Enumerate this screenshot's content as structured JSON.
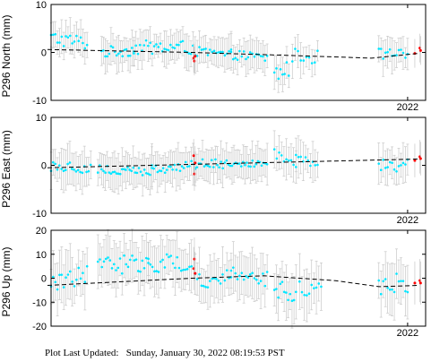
{
  "footer": {
    "label": "Plot Last Updated:",
    "value": "Sunday, January 30, 2022 08:19:53 PST"
  },
  "colors": {
    "points": "#00e5ff",
    "recent_points": "#ff0000",
    "error_bars": "#c8c8c8",
    "trend": "#000000",
    "frame": "#000000"
  },
  "chart_data": [
    {
      "type": "scatter",
      "ylabel": "P296 North (mm)",
      "ylim": [
        -10,
        10
      ],
      "yticks": [
        -10,
        0,
        10
      ],
      "x_tick_label": "2022",
      "x_tick_value": 2022.0,
      "xlim": [
        2017.05,
        2022.25
      ],
      "grid": false,
      "points_color": "cyan",
      "recent_points_color": "red",
      "error_bar_color": "gray",
      "error_bar_halfwidth_mm": 3,
      "trend": {
        "style": "dashed",
        "x": [
          2017.0,
          2019.0,
          2020.5,
          2021.5,
          2022.15
        ],
        "y": [
          0.6,
          0.0,
          -0.7,
          -1.2,
          -0.2
        ]
      },
      "segments": [
        {
          "x_start": 2017.05,
          "x_end": 2017.55,
          "y_start": 3.0,
          "y_end": 2.0,
          "amplitude": 1.5,
          "points": 18
        },
        {
          "x_start": 2017.75,
          "x_end": 2018.2,
          "y_start": 0.0,
          "y_end": 0.5,
          "amplitude": 1.2,
          "points": 18
        },
        {
          "x_start": 2018.2,
          "x_end": 2019.02,
          "y_start": 1.0,
          "y_end": 1.0,
          "amplitude": 1.5,
          "points": 30
        },
        {
          "x_start": 2019.05,
          "x_end": 2019.55,
          "y_start": 0.2,
          "y_end": -0.6,
          "amplitude": 1.0,
          "points": 18
        },
        {
          "x_start": 2019.55,
          "x_end": 2020.05,
          "y_start": -0.4,
          "y_end": -1.2,
          "amplitude": 1.0,
          "points": 18
        },
        {
          "x_start": 2020.15,
          "x_end": 2020.35,
          "y_start": -4.5,
          "y_end": -3.5,
          "amplitude": 1.8,
          "points": 8
        },
        {
          "x_start": 2020.4,
          "x_end": 2020.75,
          "y_start": -0.6,
          "y_end": -1.0,
          "amplitude": 1.5,
          "points": 10
        },
        {
          "x_start": 2021.6,
          "x_end": 2022.0,
          "y_start": -0.3,
          "y_end": -0.6,
          "amplitude": 1.2,
          "points": 14
        }
      ],
      "recent_points": [
        {
          "x": 2019.03,
          "y": -1.2
        },
        {
          "x": 2019.04,
          "y": -1.8
        },
        {
          "x": 2019.05,
          "y": -0.8
        },
        {
          "x": 2022.1,
          "y": -0.2
        },
        {
          "x": 2022.17,
          "y": 0.9
        },
        {
          "x": 2022.18,
          "y": 0.4
        }
      ]
    },
    {
      "type": "scatter",
      "ylabel": "P296 East (mm)",
      "ylim": [
        -10,
        10
      ],
      "yticks": [
        -10,
        0,
        10
      ],
      "x_tick_label": "2022",
      "x_tick_value": 2022.0,
      "xlim": [
        2017.05,
        2022.25
      ],
      "grid": false,
      "points_color": "cyan",
      "recent_points_color": "red",
      "error_bar_color": "gray",
      "error_bar_halfwidth_mm": 3.5,
      "trend": {
        "style": "dashed",
        "x": [
          2017.0,
          2022.15
        ],
        "y": [
          -0.5,
          1.3
        ]
      },
      "segments": [
        {
          "x_start": 2017.05,
          "x_end": 2017.6,
          "y_start": 0.0,
          "y_end": -0.5,
          "amplitude": 1.2,
          "points": 20
        },
        {
          "x_start": 2017.7,
          "x_end": 2018.45,
          "y_start": -1.0,
          "y_end": -1.5,
          "amplitude": 1.2,
          "points": 30
        },
        {
          "x_start": 2018.45,
          "x_end": 2019.05,
          "y_start": -0.8,
          "y_end": 0.0,
          "amplitude": 1.0,
          "points": 24
        },
        {
          "x_start": 2019.05,
          "x_end": 2020.05,
          "y_start": 0.3,
          "y_end": 0.5,
          "amplitude": 1.0,
          "points": 40
        },
        {
          "x_start": 2020.15,
          "x_end": 2020.45,
          "y_start": 2.0,
          "y_end": 1.5,
          "amplitude": 1.5,
          "points": 10
        },
        {
          "x_start": 2020.45,
          "x_end": 2020.75,
          "y_start": 0.5,
          "y_end": 1.0,
          "amplitude": 1.2,
          "points": 10
        },
        {
          "x_start": 2021.6,
          "x_end": 2022.0,
          "y_start": -0.5,
          "y_end": 0.5,
          "amplitude": 1.5,
          "points": 14
        }
      ],
      "recent_points": [
        {
          "x": 2019.03,
          "y": 2.0
        },
        {
          "x": 2019.04,
          "y": -1.8
        },
        {
          "x": 2019.05,
          "y": 0.5
        },
        {
          "x": 2022.1,
          "y": 1.0
        },
        {
          "x": 2022.17,
          "y": 1.8
        },
        {
          "x": 2022.18,
          "y": 1.4
        }
      ]
    },
    {
      "type": "scatter",
      "ylabel": "P296 Up (mm)",
      "ylim": [
        -20,
        20
      ],
      "yticks": [
        -20,
        -10,
        0,
        10,
        20
      ],
      "x_tick_label": "2022",
      "x_tick_value": 2022.0,
      "xlim": [
        2017.05,
        2022.25
      ],
      "grid": false,
      "points_color": "cyan",
      "recent_points_color": "red",
      "error_bar_color": "gray",
      "error_bar_halfwidth_mm": 9,
      "trend": {
        "style": "dashed",
        "x": [
          2017.0,
          2018.0,
          2019.0,
          2020.0,
          2021.0,
          2021.6,
          2022.15
        ],
        "y": [
          -3.0,
          -1.5,
          0.0,
          1.0,
          -1.0,
          -3.5,
          -3.0
        ]
      },
      "segments": [
        {
          "x_start": 2017.05,
          "x_end": 2017.55,
          "y_start": -2.0,
          "y_end": 2.0,
          "amplitude": 4.0,
          "points": 18
        },
        {
          "x_start": 2017.7,
          "x_end": 2018.4,
          "y_start": 5.0,
          "y_end": 7.0,
          "amplitude": 4.0,
          "points": 26
        },
        {
          "x_start": 2018.4,
          "x_end": 2019.0,
          "y_start": 7.0,
          "y_end": 5.0,
          "amplitude": 4.0,
          "points": 22
        },
        {
          "x_start": 2019.05,
          "x_end": 2019.55,
          "y_start": -1.0,
          "y_end": 0.5,
          "amplitude": 3.5,
          "points": 18
        },
        {
          "x_start": 2019.55,
          "x_end": 2020.05,
          "y_start": 2.0,
          "y_end": 0.0,
          "amplitude": 3.5,
          "points": 18
        },
        {
          "x_start": 2020.15,
          "x_end": 2020.45,
          "y_start": -5.0,
          "y_end": -6.0,
          "amplitude": 4.0,
          "points": 12
        },
        {
          "x_start": 2020.5,
          "x_end": 2020.8,
          "y_start": -3.0,
          "y_end": -6.0,
          "amplitude": 4.0,
          "points": 10
        },
        {
          "x_start": 2021.6,
          "x_end": 2022.0,
          "y_start": -2.0,
          "y_end": -3.0,
          "amplitude": 5.0,
          "points": 14
        }
      ],
      "recent_points": [
        {
          "x": 2019.03,
          "y": 4.0
        },
        {
          "x": 2019.04,
          "y": 8.0
        },
        {
          "x": 2019.05,
          "y": 2.0
        },
        {
          "x": 2022.1,
          "y": -2.0
        },
        {
          "x": 2022.17,
          "y": -1.0
        },
        {
          "x": 2022.18,
          "y": -2.0
        }
      ]
    }
  ]
}
